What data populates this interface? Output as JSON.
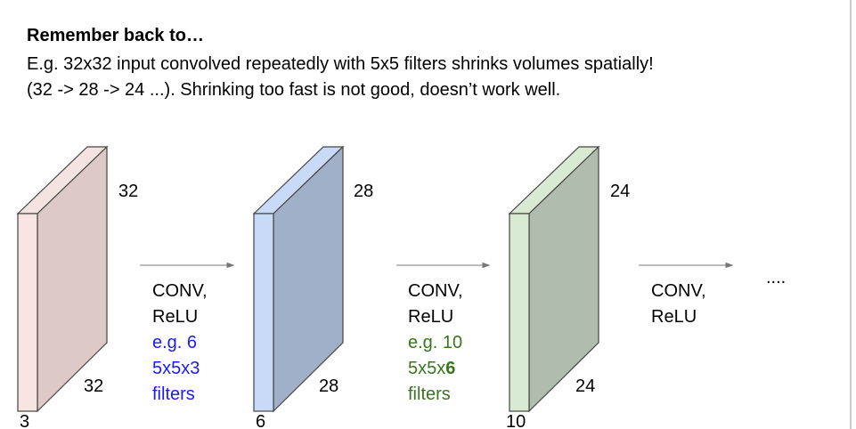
{
  "header": {
    "title": "Remember back to…",
    "lines": [
      "E.g. 32x32 input convolved repeatedly with 5x5 filters shrinks volumes spatially!",
      "(32 -> 28 -> 24 ...). Shrinking too fast is not good, doesn’t work well."
    ]
  },
  "volumes": [
    {
      "width_label": "32",
      "height_label": "32",
      "depth_label": "3"
    },
    {
      "width_label": "28",
      "height_label": "28",
      "depth_label": "6"
    },
    {
      "width_label": "24",
      "height_label": "24",
      "depth_label": "10"
    }
  ],
  "steps": [
    {
      "op": "CONV,",
      "activation": "ReLU",
      "note": "e.g. 6",
      "filter_shape": "5x5x3",
      "filters": "filters"
    },
    {
      "op": "CONV,",
      "activation": "ReLU",
      "note": "e.g. 10",
      "filter_shape_prefix": "5x5x",
      "filter_shape_emphasis": "6",
      "filters": "filters"
    },
    {
      "op": "CONV,",
      "activation": "ReLU"
    }
  ],
  "ellipsis": "...."
}
